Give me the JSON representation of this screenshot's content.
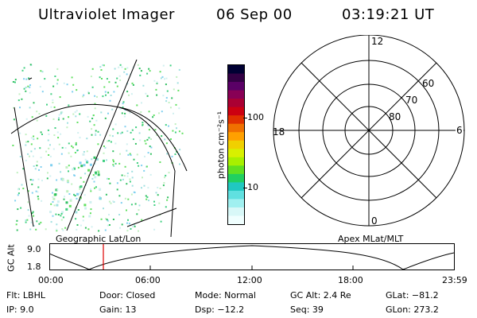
{
  "header": {
    "title": "Ultraviolet Imager",
    "date": "06 Sep 00",
    "time": "03:19:21 UT"
  },
  "panels": {
    "left_caption": "Geographic Lat/Lon",
    "right_caption": "Apex MLat/MLT"
  },
  "colorbar": {
    "unit_label": "photon cm⁻²s⁻¹",
    "tick_100": "100",
    "tick_10": "10",
    "colors": [
      "#000033",
      "#330044",
      "#5a0066",
      "#880055",
      "#aa0033",
      "#cc0011",
      "#e03000",
      "#f07000",
      "#ffa000",
      "#f0d000",
      "#d8f000",
      "#a8f000",
      "#60e020",
      "#20d060",
      "#20c8c0",
      "#60e0e0",
      "#a0f0f0",
      "#d8f8f8",
      "#f0ffff"
    ]
  },
  "polar": {
    "mlt_12": "12",
    "mlt_18": "18",
    "mlt_6": "6",
    "mlt_0": "0",
    "lat_60": "60",
    "lat_70": "70",
    "lat_80": "80"
  },
  "timeline": {
    "ylabel": "GC Alt",
    "y_max": "9.0",
    "y_min": "1.8",
    "ticks": [
      "00:00",
      "06:00",
      "12:00",
      "18:00",
      "23:59"
    ]
  },
  "status": {
    "flt": "Flt: LBHL",
    "door": "Door: Closed",
    "mode": "Mode: Normal",
    "gc_alt": "GC Alt: 2.4 Re",
    "glat": "GLat: −81.2",
    "ip": "IP: 9.0",
    "gain": "Gain: 13",
    "dsp": "Dsp: −12.2",
    "seq": "Seq: 39",
    "glon": "GLon: 273.2"
  }
}
